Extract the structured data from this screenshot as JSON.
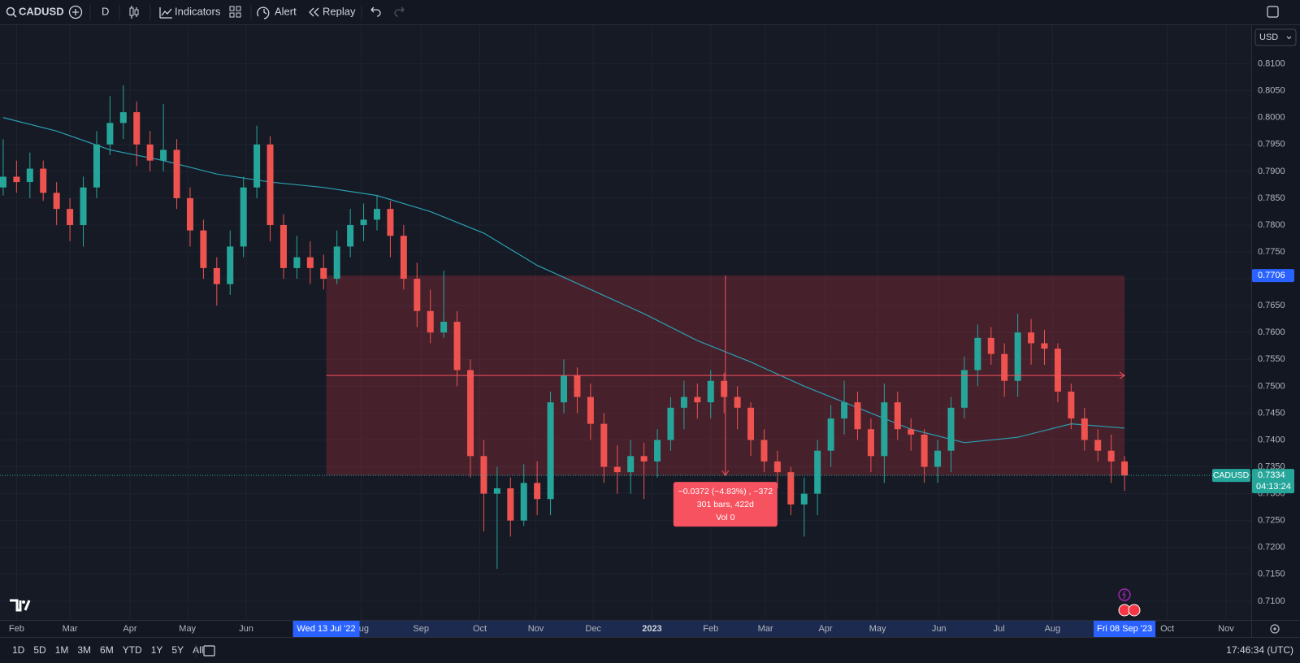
{
  "toolbar": {
    "symbol": "CADUSD",
    "interval": "D",
    "buttons": [
      "Indicators",
      "Alert",
      "Replay"
    ]
  },
  "chart_data": {
    "type": "candlestick",
    "currency": "USD",
    "up_color": "#26a69a",
    "down_color": "#ef5350",
    "grid": true,
    "x": [
      -1,
      0,
      1,
      2,
      3,
      4,
      5,
      6,
      7,
      8,
      9,
      10,
      11,
      12,
      13,
      14,
      15,
      16,
      17,
      18,
      19,
      20,
      21,
      22,
      23,
      24,
      25,
      26,
      27,
      28,
      29,
      30,
      31,
      32,
      33,
      34,
      35,
      36,
      37,
      38,
      39,
      40,
      41,
      42,
      43,
      44,
      45,
      46,
      47,
      48,
      49,
      50,
      51,
      52,
      53,
      54,
      55,
      56,
      57,
      58,
      59,
      60,
      61,
      62,
      63,
      64,
      65,
      66,
      67,
      68,
      69,
      70,
      71,
      72,
      73,
      74,
      75,
      76,
      77,
      78,
      79,
      80,
      81,
      82,
      83
    ],
    "open": [
      0.787,
      0.789,
      0.788,
      0.7905,
      0.786,
      0.783,
      0.78,
      0.787,
      0.795,
      0.799,
      0.801,
      0.795,
      0.792,
      0.794,
      0.785,
      0.779,
      0.772,
      0.769,
      0.776,
      0.787,
      0.795,
      0.78,
      0.772,
      0.774,
      0.772,
      0.77,
      0.776,
      0.78,
      0.781,
      0.783,
      0.778,
      0.77,
      0.764,
      0.76,
      0.762,
      0.753,
      0.737,
      0.73,
      0.731,
      0.725,
      0.732,
      0.729,
      0.747,
      0.752,
      0.748,
      0.743,
      0.735,
      0.734,
      0.737,
      0.736,
      0.74,
      0.746,
      0.748,
      0.747,
      0.751,
      0.748,
      0.746,
      0.74,
      0.736,
      0.734,
      0.728,
      0.73,
      0.738,
      0.744,
      0.747,
      0.742,
      0.737,
      0.747,
      0.742,
      0.741,
      0.735,
      0.738,
      0.746,
      0.753,
      0.759,
      0.756,
      0.751,
      0.76,
      0.758,
      0.757,
      0.749,
      0.744,
      0.74,
      0.738,
      0.736
    ],
    "high": [
      0.796,
      0.792,
      0.7935,
      0.792,
      0.788,
      0.785,
      0.789,
      0.7975,
      0.804,
      0.806,
      0.803,
      0.7975,
      0.8025,
      0.796,
      0.787,
      0.781,
      0.774,
      0.779,
      0.789,
      0.7985,
      0.7965,
      0.782,
      0.778,
      0.777,
      0.7745,
      0.779,
      0.783,
      0.784,
      0.7855,
      0.7845,
      0.78,
      0.773,
      0.768,
      0.7715,
      0.764,
      0.755,
      0.74,
      0.735,
      0.733,
      0.7355,
      0.736,
      0.749,
      0.755,
      0.7535,
      0.7505,
      0.745,
      0.739,
      0.74,
      0.7395,
      0.742,
      0.748,
      0.751,
      0.7505,
      0.753,
      0.7525,
      0.75,
      0.747,
      0.742,
      0.738,
      0.735,
      0.733,
      0.74,
      0.7465,
      0.751,
      0.749,
      0.744,
      0.7505,
      0.749,
      0.744,
      0.742,
      0.74,
      0.748,
      0.7555,
      0.7615,
      0.761,
      0.758,
      0.7635,
      0.7625,
      0.7605,
      0.758,
      0.7505,
      0.746,
      0.742,
      0.741,
      0.737
    ],
    "low": [
      0.7855,
      0.786,
      0.785,
      0.7845,
      0.78,
      0.777,
      0.776,
      0.785,
      0.793,
      0.796,
      0.791,
      0.79,
      0.79,
      0.783,
      0.776,
      0.77,
      0.765,
      0.767,
      0.774,
      0.785,
      0.777,
      0.77,
      0.77,
      0.769,
      0.768,
      0.769,
      0.774,
      0.777,
      0.779,
      0.774,
      0.768,
      0.761,
      0.758,
      0.759,
      0.75,
      0.733,
      0.723,
      0.716,
      0.722,
      0.724,
      0.726,
      0.726,
      0.745,
      0.745,
      0.74,
      0.732,
      0.73,
      0.73,
      0.729,
      0.733,
      0.738,
      0.742,
      0.744,
      0.744,
      0.745,
      0.742,
      0.737,
      0.734,
      0.731,
      0.726,
      0.722,
      0.726,
      0.735,
      0.741,
      0.74,
      0.734,
      0.732,
      0.74,
      0.738,
      0.732,
      0.732,
      0.734,
      0.744,
      0.75,
      0.754,
      0.748,
      0.748,
      0.754,
      0.754,
      0.747,
      0.742,
      0.738,
      0.736,
      0.732,
      0.7305
    ],
    "close": [
      0.789,
      0.788,
      0.7905,
      0.786,
      0.783,
      0.78,
      0.787,
      0.795,
      0.799,
      0.801,
      0.795,
      0.792,
      0.794,
      0.785,
      0.779,
      0.772,
      0.769,
      0.776,
      0.787,
      0.795,
      0.78,
      0.772,
      0.774,
      0.772,
      0.77,
      0.776,
      0.78,
      0.781,
      0.783,
      0.778,
      0.77,
      0.764,
      0.76,
      0.762,
      0.753,
      0.737,
      0.73,
      0.731,
      0.725,
      0.732,
      0.729,
      0.747,
      0.752,
      0.748,
      0.743,
      0.735,
      0.734,
      0.737,
      0.736,
      0.74,
      0.746,
      0.748,
      0.747,
      0.751,
      0.748,
      0.746,
      0.74,
      0.736,
      0.734,
      0.728,
      0.73,
      0.738,
      0.744,
      0.747,
      0.742,
      0.737,
      0.747,
      0.742,
      0.741,
      0.735,
      0.738,
      0.746,
      0.753,
      0.759,
      0.756,
      0.751,
      0.76,
      0.758,
      0.757,
      0.749,
      0.744,
      0.74,
      0.738,
      0.736,
      0.7334
    ],
    "ma": {
      "color": "#2a9fb2",
      "x": [
        -1,
        3,
        7,
        11,
        15,
        19,
        23,
        27,
        31,
        35,
        39,
        43,
        47,
        51,
        55,
        59,
        63,
        67,
        71,
        75,
        79,
        83
      ],
      "values": [
        0.8,
        0.7975,
        0.794,
        0.792,
        0.7895,
        0.788,
        0.787,
        0.7855,
        0.7825,
        0.7785,
        0.7725,
        0.768,
        0.7635,
        0.7585,
        0.7545,
        0.75,
        0.746,
        0.742,
        0.7395,
        0.7405,
        0.743,
        0.7422
      ]
    },
    "countdown": "04:13:24",
    "xlim": [
      -1.24,
      92.49
    ],
    "xticks": [
      {
        "value": 0,
        "label": "Feb"
      },
      {
        "value": 4.0,
        "label": "Mar"
      },
      {
        "value": 8.5,
        "label": "Apr"
      },
      {
        "value": 12.8,
        "label": "May"
      },
      {
        "value": 17.2,
        "label": "Jun"
      },
      {
        "value": 25.8,
        "label": "Aug"
      },
      {
        "value": 30.3,
        "label": "Sep"
      },
      {
        "value": 34.7,
        "label": "Oct"
      },
      {
        "value": 38.9,
        "label": "Nov"
      },
      {
        "value": 43.2,
        "label": "Dec"
      },
      {
        "value": 47.6,
        "label": "2023"
      },
      {
        "value": 52.0,
        "label": "Feb"
      },
      {
        "value": 56.1,
        "label": "Mar"
      },
      {
        "value": 60.6,
        "label": "Apr"
      },
      {
        "value": 64.5,
        "label": "May"
      },
      {
        "value": 69.1,
        "label": "Jun"
      },
      {
        "value": 73.6,
        "label": "Jul"
      },
      {
        "value": 77.6,
        "label": "Aug"
      },
      {
        "value": 86.2,
        "label": "Oct"
      },
      {
        "value": 90.6,
        "label": "Nov"
      }
    ],
    "ylim": [
      0.7065,
      0.8172
    ],
    "yticks": [
      {
        "value": 0.71,
        "label": "0.7100"
      },
      {
        "value": 0.715,
        "label": "0.7150"
      },
      {
        "value": 0.72,
        "label": "0.7200"
      },
      {
        "value": 0.725,
        "label": "0.7250"
      },
      {
        "value": 0.73,
        "label": "0.7300"
      },
      {
        "value": 0.735,
        "label": "0.7350"
      },
      {
        "value": 0.74,
        "label": "0.7400"
      },
      {
        "value": 0.745,
        "label": "0.7450"
      },
      {
        "value": 0.75,
        "label": "0.7500"
      },
      {
        "value": 0.755,
        "label": "0.7550"
      },
      {
        "value": 0.76,
        "label": "0.7600"
      },
      {
        "value": 0.765,
        "label": "0.7650"
      },
      {
        "value": 0.77,
        "label": "0.7700"
      },
      {
        "value": 0.775,
        "label": "0.7750"
      },
      {
        "value": 0.78,
        "label": "0.7800"
      },
      {
        "value": 0.785,
        "label": "0.7850"
      },
      {
        "value": 0.79,
        "label": "0.7900"
      },
      {
        "value": 0.795,
        "label": "0.7950"
      },
      {
        "value": 0.8,
        "label": "0.8000"
      },
      {
        "value": 0.805,
        "label": "0.8050"
      },
      {
        "value": 0.81,
        "label": "0.8100"
      }
    ],
    "measure": {
      "from": 0.7706,
      "to": 0.7334,
      "x_start": 23.2,
      "x_end": 83,
      "start_label": "Wed 13 Jul '22",
      "end_label": "Fri 08 Sep '23",
      "lines": [
        "−0.0372 (−4.83%) , −372",
        "301 bars, 422d",
        "Vol 0"
      ]
    }
  },
  "bottom_bar": {
    "ranges": [
      "1D",
      "5D",
      "1M",
      "3M",
      "6M",
      "YTD",
      "1Y",
      "5Y",
      "All"
    ],
    "clock": "17:46:34 (UTC)"
  }
}
